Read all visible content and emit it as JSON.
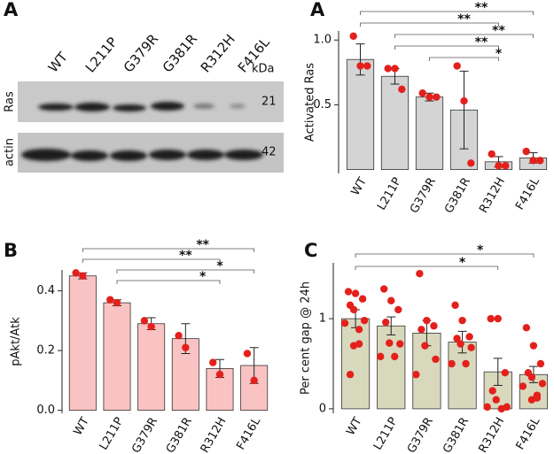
{
  "blot": {
    "panel": "A",
    "lanes": [
      "WT",
      "L211P",
      "G379R",
      "G381R",
      "R312H",
      "F416L"
    ],
    "unit": "kDa",
    "rows": [
      {
        "label": "Ras",
        "size": "21"
      },
      {
        "label": "actin",
        "size": "42"
      }
    ]
  },
  "chart_data": [
    {
      "type": "bar",
      "panel": "A",
      "ylabel": "Activated Ras",
      "color": "#d4d4d4",
      "point_color": "#e4201c",
      "categories": [
        "WT",
        "L211P",
        "G379R",
        "G381R",
        "R312H",
        "F416L"
      ],
      "values": [
        0.85,
        0.72,
        0.56,
        0.46,
        0.06,
        0.09
      ],
      "errors": [
        0.12,
        0.06,
        0.03,
        0.3,
        0.04,
        0.04
      ],
      "points": [
        [
          1.03,
          0.8,
          0.8
        ],
        [
          0.78,
          0.78,
          0.62
        ],
        [
          0.59,
          0.56,
          0.56
        ],
        [
          0.8,
          0.53,
          0.05
        ],
        [
          0.12,
          0.03,
          0.03
        ],
        [
          0.14,
          0.07,
          0.07
        ]
      ],
      "ylim": [
        -0.03,
        1.07
      ],
      "yticks": [
        0.5,
        {
          "value": 1,
          "label": "1.0"
        }
      ],
      "brackets": [
        {
          "from": 0,
          "to": 5,
          "label": "**"
        },
        {
          "from": 0,
          "to": 4,
          "label": "**"
        },
        {
          "from": 1,
          "to": 5,
          "label": "**"
        },
        {
          "from": 1,
          "to": 4,
          "label": "**"
        },
        {
          "from": 2,
          "to": 4,
          "label": "*"
        }
      ]
    },
    {
      "type": "bar",
      "panel": "B",
      "ylabel": "pAkt/Atk",
      "color": "#fac3c3",
      "point_color": "#e4201c",
      "categories": [
        "WT",
        "L211P",
        "G379R",
        "G381R",
        "R312H",
        "F416L"
      ],
      "values": [
        0.45,
        0.36,
        0.29,
        0.24,
        0.14,
        0.15
      ],
      "errors": [
        0.01,
        0.01,
        0.02,
        0.05,
        0.03,
        0.06
      ],
      "points": [
        [
          0.46,
          0.45
        ],
        [
          0.37,
          0.36
        ],
        [
          0.3,
          0.28
        ],
        [
          0.25,
          0.21
        ],
        [
          0.16,
          0.12
        ],
        [
          0.19,
          0.1
        ]
      ],
      "ylim": [
        -0.01,
        0.47
      ],
      "yticks": [
        {
          "value": 0,
          "label": "0.0"
        },
        0.2,
        0.4
      ],
      "brackets": [
        {
          "from": 0,
          "to": 5,
          "label": "**"
        },
        {
          "from": 0,
          "to": 4,
          "label": "**"
        },
        {
          "from": 1,
          "to": 5,
          "label": "*"
        },
        {
          "from": 1,
          "to": 4,
          "label": "*"
        }
      ]
    },
    {
      "type": "bar",
      "panel": "C",
      "ylabel": "Per cent gap @ 24h",
      "color": "#d8d8bd",
      "point_color": "#e4201c",
      "categories": [
        "WT",
        "L211P",
        "G379R",
        "G381R",
        "R312H",
        "F416L"
      ],
      "values": [
        1.0,
        0.92,
        0.84,
        0.74,
        0.41,
        0.38
      ],
      "errors": [
        0.1,
        0.1,
        0.14,
        0.12,
        0.15,
        0.09
      ],
      "points": [
        [
          1.3,
          1.28,
          1.22,
          1.15,
          1.1,
          0.98,
          0.95,
          0.88,
          0.72,
          0.7,
          0.38
        ],
        [
          1.33,
          1.2,
          1.1,
          0.96,
          0.73,
          0.72,
          0.58,
          0.58
        ],
        [
          1.5,
          0.98,
          0.92,
          0.88,
          0.7,
          0.55,
          0.38
        ],
        [
          1.15,
          0.98,
          0.8,
          0.78,
          0.72,
          0.68,
          0.5,
          0.5
        ],
        [
          1.0,
          1.0,
          0.4,
          0.2,
          0.1,
          0.02,
          0.02,
          0.0,
          0.0
        ],
        [
          0.9,
          0.7,
          0.5,
          0.4,
          0.35,
          0.28,
          0.25,
          0.15,
          0.12,
          0.1
        ]
      ],
      "ylim": [
        -0.05,
        1.62
      ],
      "yticks": [
        0,
        1
      ],
      "brackets": [
        {
          "from": 0,
          "to": 5,
          "label": "*"
        },
        {
          "from": 0,
          "to": 4,
          "label": "*"
        }
      ]
    }
  ]
}
